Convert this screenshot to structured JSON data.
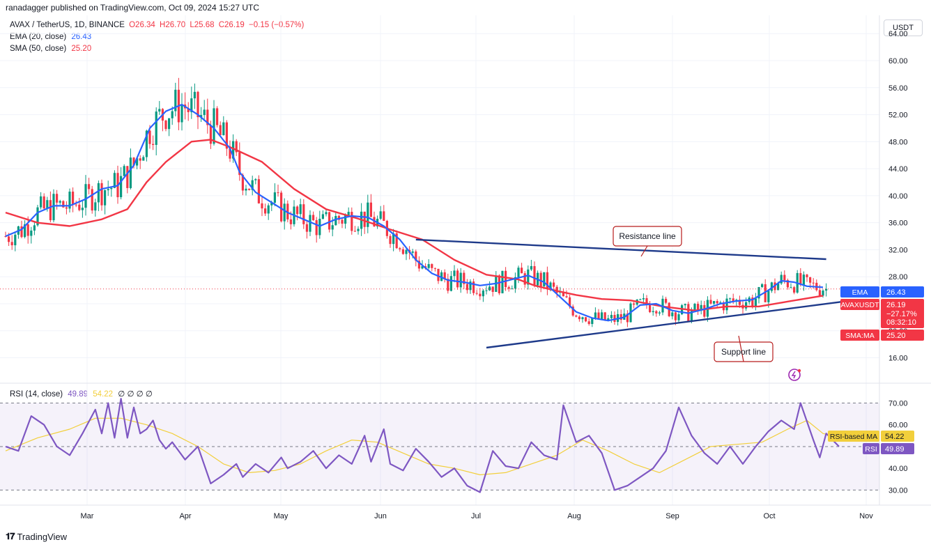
{
  "publisher_line": "ranadagger published on TradingView.com, Oct 09, 2024 15:27 UTC",
  "symbol_line": "AVAX / TetherUS, 1D, BINANCE",
  "ohlc": {
    "o": "O26.34",
    "h": "H26.70",
    "l": "L25.68",
    "c": "C26.19",
    "chg": "−0.15 (−0.57%)"
  },
  "ema_legend": {
    "label": "EMA (20, close)",
    "value": "26.43"
  },
  "sma_legend": {
    "label": "SMA (50, close)",
    "value": "25.20"
  },
  "rsi_legend": {
    "label": "RSI (14, close)",
    "rsi": "49.89",
    "ma": "54.22",
    "extra": "∅ ∅ ∅ ∅"
  },
  "currency_button": "USDT",
  "footer": "TradingView",
  "colors": {
    "ema": "#2962ff",
    "sma": "#f23645",
    "up": "#089981",
    "down": "#f23645",
    "rsi": "#7e57c2",
    "rsi_ma": "#f2cf3b",
    "trend": "#1e3a8a"
  },
  "chart_data": [
    {
      "type": "candlestick",
      "title": "AVAX / TetherUS, 1D, BINANCE",
      "ylim": [
        14.2,
        66.5
      ],
      "y_ticks": [
        "64.00",
        "60.00",
        "56.00",
        "52.00",
        "48.00",
        "44.00",
        "40.00",
        "36.00",
        "32.00",
        "28.00",
        "24.00",
        "20.00",
        "16.00"
      ],
      "x_ticks": [
        "Mar",
        "Apr",
        "May",
        "Jun",
        "Jul",
        "Aug",
        "Sep",
        "Oct",
        "Nov"
      ],
      "last_close": 26.19,
      "series_ema20": [
        [
          0,
          34
        ],
        [
          5,
          35
        ],
        [
          10,
          37.5
        ],
        [
          15,
          38.5
        ],
        [
          20,
          38.5
        ],
        [
          25,
          39.5
        ],
        [
          30,
          41
        ],
        [
          35,
          41.5
        ],
        [
          40,
          44.5
        ],
        [
          45,
          50
        ],
        [
          50,
          52.5
        ],
        [
          55,
          53.5
        ],
        [
          60,
          52
        ],
        [
          65,
          50
        ],
        [
          70,
          47
        ],
        [
          73,
          43.5
        ],
        [
          78,
          40.5
        ],
        [
          83,
          39
        ],
        [
          88,
          37.5
        ],
        [
          93,
          36.5
        ],
        [
          98,
          35.5
        ],
        [
          103,
          36.5
        ],
        [
          108,
          37
        ],
        [
          113,
          36.8
        ],
        [
          118,
          35.5
        ],
        [
          123,
          33.5
        ],
        [
          128,
          30.5
        ],
        [
          133,
          28.5
        ],
        [
          138,
          27.5
        ],
        [
          143,
          27.2
        ],
        [
          148,
          26.7
        ],
        [
          153,
          27
        ],
        [
          158,
          27.6
        ],
        [
          163,
          28.2
        ],
        [
          168,
          27.2
        ],
        [
          173,
          25
        ],
        [
          178,
          22.8
        ],
        [
          183,
          21.9
        ],
        [
          188,
          21.5
        ],
        [
          193,
          22
        ],
        [
          198,
          23.8
        ],
        [
          203,
          24
        ],
        [
          208,
          23
        ],
        [
          213,
          22.6
        ],
        [
          218,
          23.2
        ],
        [
          223,
          24
        ],
        [
          228,
          24.4
        ],
        [
          233,
          24.6
        ],
        [
          238,
          26
        ],
        [
          242,
          27.4
        ],
        [
          246,
          27.2
        ],
        [
          250,
          26.6
        ],
        [
          255,
          26.43
        ]
      ],
      "series_sma50": [
        [
          0,
          37.5
        ],
        [
          10,
          36
        ],
        [
          20,
          35.5
        ],
        [
          30,
          36.5
        ],
        [
          38,
          38
        ],
        [
          44,
          42
        ],
        [
          50,
          45
        ],
        [
          58,
          48
        ],
        [
          64,
          48.3
        ],
        [
          70,
          47.2
        ],
        [
          80,
          45
        ],
        [
          90,
          41
        ],
        [
          100,
          38
        ],
        [
          110,
          36.6
        ],
        [
          120,
          35
        ],
        [
          130,
          33.5
        ],
        [
          140,
          30.5
        ],
        [
          150,
          28.3
        ],
        [
          160,
          27.6
        ],
        [
          165,
          26.7
        ],
        [
          172,
          25.9
        ],
        [
          178,
          25.3
        ],
        [
          186,
          24.7
        ],
        [
          195,
          24.5
        ],
        [
          205,
          23.6
        ],
        [
          215,
          23
        ],
        [
          225,
          23.6
        ],
        [
          235,
          23.6
        ],
        [
          245,
          24.4
        ],
        [
          255,
          25.2
        ]
      ],
      "resistance_line": [
        [
          128,
          33.5
        ],
        [
          256,
          30.6
        ]
      ],
      "support_line": [
        [
          150,
          17.5
        ],
        [
          261,
          24.3
        ]
      ],
      "annotations": [
        "Resistance line",
        "Support line"
      ],
      "price_labels": [
        {
          "name": "EMA",
          "value": "26.43"
        },
        {
          "name": "AVAXUSDT",
          "value": "26.19",
          "extra": [
            "−27.17%",
            "08:32:10"
          ]
        },
        {
          "name": "SMA:MA",
          "value": "25.20"
        }
      ]
    },
    {
      "type": "line",
      "title": "RSI (14, close)",
      "ylim": [
        25,
        74
      ],
      "y_ticks": [
        "70.00",
        "60.00",
        "50.00",
        "40.00",
        "30.00"
      ],
      "bands": [
        30,
        50,
        70
      ],
      "rsi": [
        [
          0,
          50
        ],
        [
          4,
          48
        ],
        [
          8,
          64
        ],
        [
          12,
          60
        ],
        [
          16,
          50
        ],
        [
          20,
          46
        ],
        [
          24,
          56
        ],
        [
          28,
          67
        ],
        [
          30,
          56
        ],
        [
          32,
          70
        ],
        [
          34,
          54
        ],
        [
          36,
          72
        ],
        [
          38,
          54
        ],
        [
          40,
          68
        ],
        [
          42,
          56
        ],
        [
          44,
          58
        ],
        [
          46,
          62
        ],
        [
          48,
          53
        ],
        [
          50,
          49
        ],
        [
          52,
          52
        ],
        [
          56,
          44
        ],
        [
          60,
          50
        ],
        [
          64,
          33
        ],
        [
          68,
          37
        ],
        [
          72,
          42
        ],
        [
          74,
          36
        ],
        [
          78,
          42
        ],
        [
          82,
          38
        ],
        [
          86,
          45
        ],
        [
          88,
          40
        ],
        [
          92,
          43
        ],
        [
          96,
          48
        ],
        [
          100,
          40
        ],
        [
          104,
          46
        ],
        [
          108,
          42
        ],
        [
          112,
          55
        ],
        [
          114,
          43
        ],
        [
          118,
          58
        ],
        [
          120,
          42
        ],
        [
          124,
          39
        ],
        [
          128,
          49
        ],
        [
          132,
          43
        ],
        [
          136,
          36
        ],
        [
          140,
          40
        ],
        [
          144,
          32
        ],
        [
          148,
          29
        ],
        [
          152,
          48
        ],
        [
          156,
          41
        ],
        [
          160,
          40
        ],
        [
          164,
          52
        ],
        [
          168,
          46
        ],
        [
          172,
          44
        ],
        [
          174,
          69
        ],
        [
          178,
          52
        ],
        [
          182,
          55
        ],
        [
          186,
          47
        ],
        [
          190,
          30
        ],
        [
          194,
          32
        ],
        [
          198,
          36
        ],
        [
          202,
          40
        ],
        [
          206,
          48
        ],
        [
          210,
          68
        ],
        [
          214,
          55
        ],
        [
          218,
          47
        ],
        [
          222,
          42
        ],
        [
          226,
          50
        ],
        [
          230,
          42
        ],
        [
          234,
          50
        ],
        [
          238,
          57
        ],
        [
          242,
          62
        ],
        [
          246,
          58
        ],
        [
          248,
          70
        ],
        [
          252,
          53
        ],
        [
          254,
          45
        ],
        [
          256,
          56
        ],
        [
          260,
          50
        ]
      ],
      "rsi_ma": [
        [
          0,
          48
        ],
        [
          10,
          54
        ],
        [
          20,
          58
        ],
        [
          28,
          63
        ],
        [
          36,
          63
        ],
        [
          44,
          60
        ],
        [
          52,
          56
        ],
        [
          60,
          50
        ],
        [
          68,
          42
        ],
        [
          76,
          38
        ],
        [
          84,
          39
        ],
        [
          92,
          42
        ],
        [
          100,
          48
        ],
        [
          108,
          53
        ],
        [
          116,
          52
        ],
        [
          124,
          47
        ],
        [
          132,
          42
        ],
        [
          140,
          40
        ],
        [
          148,
          37
        ],
        [
          156,
          38
        ],
        [
          164,
          42
        ],
        [
          172,
          46
        ],
        [
          180,
          53
        ],
        [
          188,
          48
        ],
        [
          196,
          42
        ],
        [
          204,
          38
        ],
        [
          212,
          44
        ],
        [
          220,
          50
        ],
        [
          228,
          51
        ],
        [
          236,
          52
        ],
        [
          244,
          58
        ],
        [
          250,
          62
        ],
        [
          255,
          56
        ],
        [
          260,
          54.2
        ]
      ]
    }
  ]
}
